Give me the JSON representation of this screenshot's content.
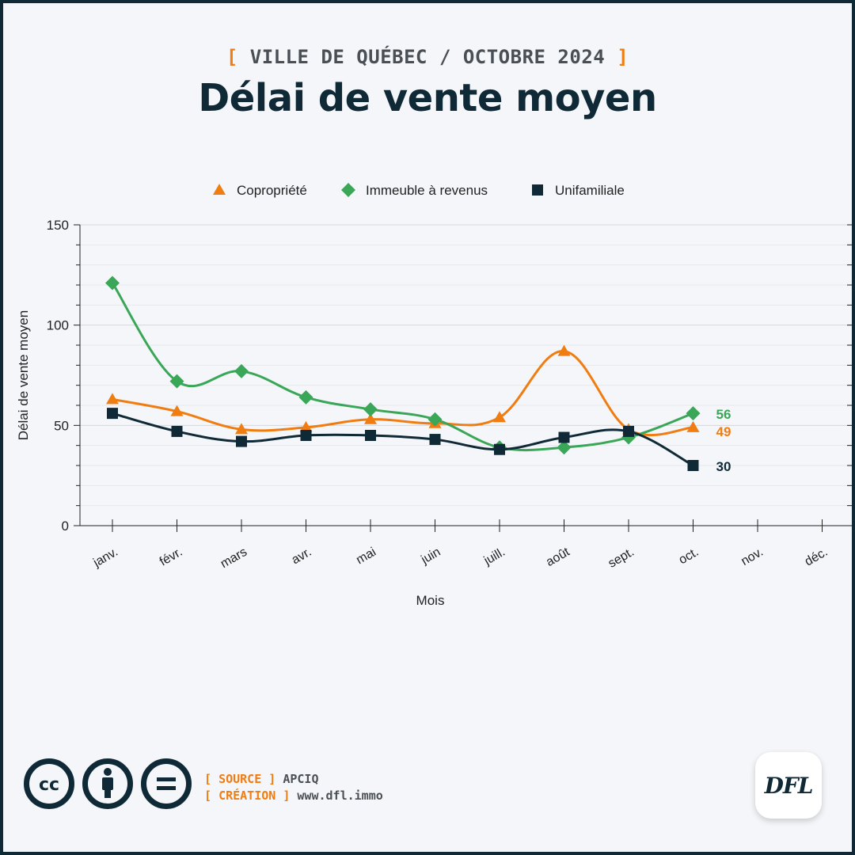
{
  "header": {
    "bracket_open": "[",
    "kicker": "VILLE DE QUÉBEC / OCTOBRE 2024",
    "bracket_close": "]",
    "title": "Délai de vente moyen"
  },
  "colors": {
    "copropriete": "#f07d12",
    "immeuble": "#3aa657",
    "unifamiliale": "#0f2a36",
    "dark": "#0f2a36",
    "accent": "#f07d12"
  },
  "chart_data": {
    "type": "line",
    "xlabel": "Mois",
    "ylabel": "Délai de vente moyen",
    "ylim": [
      0,
      150
    ],
    "yticks": [
      "0",
      "50",
      "100",
      "150"
    ],
    "categories": [
      "janv.",
      "févr.",
      "mars",
      "avr.",
      "mai",
      "juin",
      "juill.",
      "août",
      "sept.",
      "oct.",
      "nov.",
      "déc."
    ],
    "legend_position": "top-center",
    "grid": true,
    "series": [
      {
        "name": "Copropriété",
        "marker": "triangle",
        "color": "#f07d12",
        "values": [
          63,
          57,
          48,
          49,
          53,
          51,
          54,
          87,
          48,
          49,
          null,
          null
        ],
        "end_label": "49"
      },
      {
        "name": "Immeuble à revenus",
        "marker": "diamond",
        "color": "#3aa657",
        "values": [
          121,
          72,
          77,
          64,
          58,
          53,
          39,
          39,
          44,
          56,
          null,
          null
        ],
        "end_label": "56"
      },
      {
        "name": "Unifamiliale",
        "marker": "square",
        "color": "#0f2a36",
        "values": [
          56,
          47,
          42,
          45,
          45,
          43,
          38,
          44,
          47,
          30,
          null,
          null
        ],
        "end_label": "30"
      }
    ]
  },
  "footer": {
    "license_icons": [
      "cc-icon",
      "attribution-icon",
      "no-derivatives-icon"
    ],
    "cc_text": "cc",
    "source_label": "SOURCE",
    "source_value": "APCIQ",
    "creation_label": "CRÉATION",
    "creation_value": "www.dfl.immo",
    "logo_text": "DFL"
  }
}
